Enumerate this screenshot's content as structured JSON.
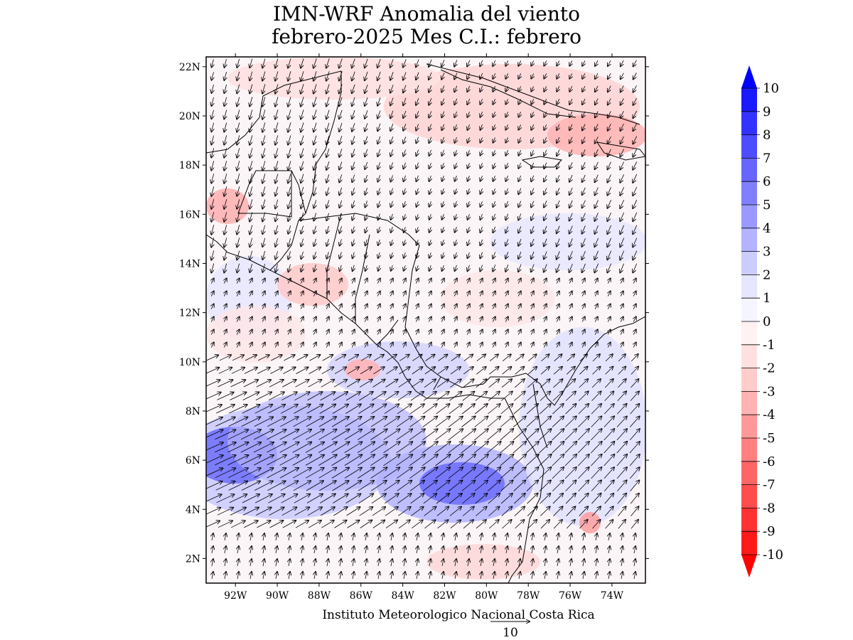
{
  "title_line1": "IMN-WRF Anomalia del viento",
  "title_line2": "febrero-2025 Mes C.I.: febrero",
  "credit": "Instituto Meteorologico Nacional Costa Rica",
  "reference_vector_label": "10",
  "lat_labels": [
    "22N",
    "20N",
    "18N",
    "16N",
    "14N",
    "12N",
    "10N",
    "8N",
    "6N",
    "4N",
    "2N"
  ],
  "lon_labels": [
    "92W",
    "90W",
    "88W",
    "86W",
    "84W",
    "82W",
    "80W",
    "78W",
    "76W",
    "74W"
  ],
  "colorbar": {
    "labels": [
      "10",
      "9",
      "8",
      "7",
      "6",
      "5",
      "4",
      "3",
      "2",
      "1",
      "0",
      "-1",
      "-2",
      "-3",
      "-4",
      "-5",
      "-6",
      "-7",
      "-8",
      "-9",
      "-10"
    ],
    "colors": [
      "#1a1aff",
      "#3333ff",
      "#4d4dff",
      "#6666ff",
      "#8080ff",
      "#9999ff",
      "#b3b3ff",
      "#ccccff",
      "#e6e6ff",
      "#f5f5ff",
      "#fff2f2",
      "#ffe0e0",
      "#ffcccc",
      "#ffb3b3",
      "#ff9999",
      "#ff8080",
      "#ff6666",
      "#ff4d4d",
      "#ff3333",
      "#ff1a1a"
    ],
    "top_arrow_color": "#0000ff",
    "bottom_arrow_color": "#ff0000"
  },
  "domain": {
    "lon_min": -93.4,
    "lon_max": -72.4,
    "lat_min": 1,
    "lat_max": 22.4
  }
}
